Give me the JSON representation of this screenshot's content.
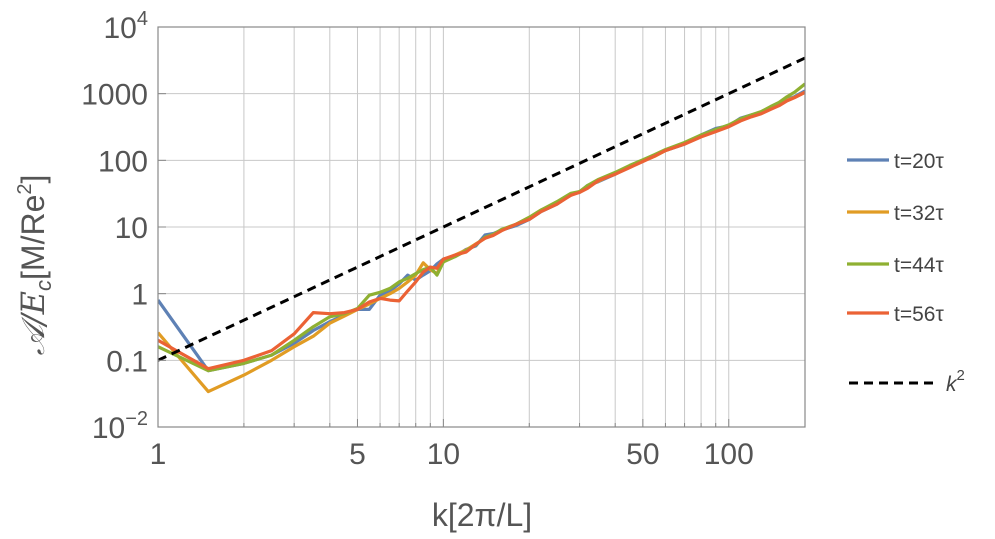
{
  "chart_data": {
    "type": "line",
    "xlabel": "k[2π/L]",
    "ylabel_base": "𝒜/E",
    "ylabel_sub": "c",
    "ylabel_units": "[M/Re",
    "ylabel_units_sup": "2",
    "ylabel_units_close": "]",
    "xscale": "log",
    "yscale": "log",
    "xlim": [
      1,
      185
    ],
    "ylim": [
      0.01,
      10000
    ],
    "grid": true,
    "x_ticks": [
      {
        "value": 1,
        "label": "1"
      },
      {
        "value": 5,
        "label": "5"
      },
      {
        "value": 10,
        "label": "10"
      },
      {
        "value": 50,
        "label": "50"
      },
      {
        "value": 100,
        "label": "100"
      }
    ],
    "y_ticks": [
      {
        "value": 0.01,
        "base": "10",
        "sup": "−2",
        "label": ""
      },
      {
        "value": 0.1,
        "label": "0.1"
      },
      {
        "value": 1,
        "label": "1"
      },
      {
        "value": 10,
        "label": "10"
      },
      {
        "value": 100,
        "label": "100"
      },
      {
        "value": 1000,
        "label": "1000"
      },
      {
        "value": 10000,
        "base": "10",
        "sup": "4",
        "label": ""
      }
    ],
    "legend_position": "right",
    "series": [
      {
        "name": "t=20τ",
        "color": "#5e81b5",
        "x": [
          1,
          1.5,
          2,
          2.5,
          3,
          3.5,
          4,
          4.5,
          5,
          5.5,
          6,
          6.5,
          7,
          7.5,
          8,
          8.5,
          9,
          9.5,
          10,
          11,
          12,
          13,
          14,
          15,
          16,
          18,
          20,
          22,
          25,
          28,
          30,
          32,
          35,
          40,
          45,
          50,
          55,
          60,
          70,
          80,
          90,
          100,
          110,
          120,
          130,
          140,
          150,
          160,
          170,
          185
        ],
        "y": [
          0.8,
          0.07,
          0.09,
          0.12,
          0.18,
          0.28,
          0.38,
          0.48,
          0.58,
          0.58,
          0.95,
          1.1,
          1.4,
          1.9,
          1.6,
          1.9,
          2.2,
          2.8,
          3.3,
          3.6,
          4.6,
          5.2,
          7.6,
          8.0,
          9.0,
          10.5,
          13,
          17,
          22,
          31,
          33,
          42,
          48,
          62,
          82,
          100,
          118,
          140,
          175,
          240,
          300,
          330,
          430,
          480,
          520,
          620,
          700,
          820,
          900,
          1100
        ]
      },
      {
        "name": "t=32τ",
        "color": "#e19c24",
        "x": [
          1,
          1.5,
          2,
          2.5,
          3,
          3.5,
          4,
          4.5,
          5,
          5.5,
          6,
          6.5,
          7,
          7.5,
          8,
          8.5,
          9,
          9.5,
          10,
          11,
          12,
          13,
          14,
          15,
          16,
          18,
          20,
          22,
          25,
          28,
          30,
          32,
          35,
          40,
          45,
          50,
          55,
          60,
          70,
          80,
          90,
          100,
          110,
          120,
          130,
          140,
          150,
          160,
          170,
          185
        ],
        "y": [
          0.26,
          0.034,
          0.06,
          0.1,
          0.16,
          0.23,
          0.36,
          0.46,
          0.58,
          0.7,
          0.85,
          1.0,
          1.2,
          1.5,
          1.9,
          2.9,
          2.3,
          2.0,
          3.2,
          3.8,
          4.5,
          5.6,
          6.8,
          7.8,
          9.0,
          11,
          14,
          18,
          23,
          30,
          34,
          40,
          49,
          64,
          80,
          97,
          115,
          140,
          180,
          230,
          280,
          330,
          410,
          460,
          510,
          600,
          680,
          800,
          880,
          1050
        ]
      },
      {
        "name": "t=44τ",
        "color": "#8fb032",
        "x": [
          1,
          1.5,
          2,
          2.5,
          3,
          3.5,
          4,
          4.5,
          5,
          5.5,
          6,
          6.5,
          7,
          7.5,
          8,
          8.5,
          9,
          9.5,
          10,
          11,
          12,
          13,
          14,
          15,
          16,
          18,
          20,
          22,
          25,
          28,
          30,
          32,
          35,
          40,
          45,
          50,
          55,
          60,
          70,
          80,
          90,
          100,
          110,
          120,
          130,
          140,
          150,
          160,
          170,
          185
        ],
        "y": [
          0.16,
          0.07,
          0.09,
          0.12,
          0.2,
          0.32,
          0.45,
          0.5,
          0.6,
          0.95,
          1.05,
          1.2,
          1.5,
          1.7,
          2.0,
          2.3,
          2.5,
          1.9,
          3.0,
          3.6,
          4.4,
          5.4,
          7.0,
          7.8,
          9.2,
          11,
          14,
          18,
          24,
          32,
          34,
          42,
          52,
          66,
          84,
          102,
          122,
          145,
          185,
          240,
          290,
          340,
          420,
          480,
          540,
          640,
          740,
          900,
          1050,
          1400
        ]
      },
      {
        "name": "t=56τ",
        "color": "#eb6235",
        "x": [
          1,
          1.5,
          2,
          2.5,
          3,
          3.5,
          4,
          4.5,
          5,
          5.5,
          6,
          6.5,
          7,
          7.5,
          8,
          8.5,
          9,
          9.5,
          10,
          11,
          12,
          13,
          14,
          15,
          16,
          18,
          20,
          22,
          25,
          28,
          30,
          32,
          35,
          40,
          45,
          50,
          55,
          60,
          70,
          80,
          90,
          100,
          110,
          120,
          130,
          140,
          150,
          160,
          170,
          185
        ],
        "y": [
          0.2,
          0.075,
          0.1,
          0.14,
          0.25,
          0.52,
          0.5,
          0.52,
          0.58,
          0.75,
          0.85,
          0.8,
          0.78,
          1.1,
          1.5,
          2.1,
          2.5,
          2.4,
          3.3,
          3.8,
          4.2,
          5.5,
          6.8,
          7.5,
          8.8,
          11,
          13,
          17,
          22,
          30,
          33,
          38,
          50,
          62,
          78,
          96,
          116,
          140,
          175,
          225,
          270,
          320,
          390,
          450,
          500,
          580,
          660,
          780,
          870,
          1050
        ]
      },
      {
        "name": "k²",
        "name_base": "k",
        "name_sup": "2",
        "color": "#000000",
        "dashed": true,
        "x": [
          1,
          185
        ],
        "y": [
          0.1,
          3422.5
        ]
      }
    ]
  }
}
